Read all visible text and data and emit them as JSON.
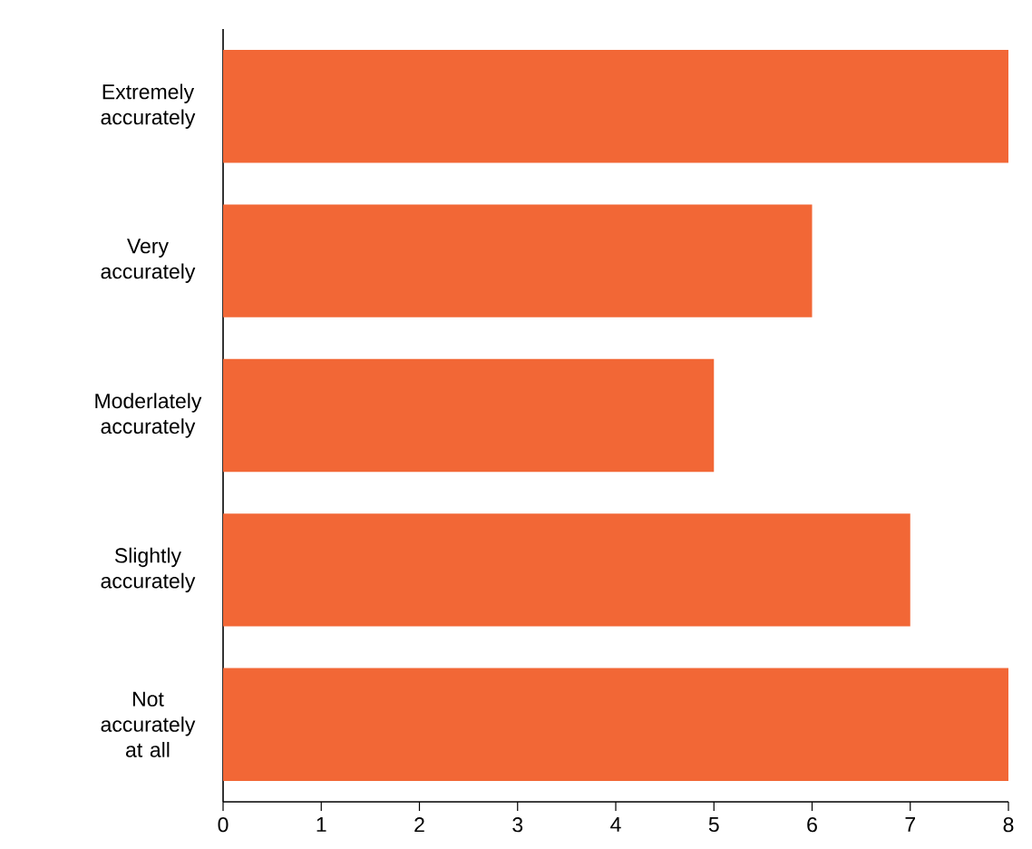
{
  "chart_data": {
    "type": "bar",
    "orientation": "horizontal",
    "categories": [
      "Extremely accurately",
      "Very accurately",
      "Moderlately accurately",
      "Slightly accurately",
      "Not accurately at all"
    ],
    "values": [
      8,
      6,
      5,
      7,
      8
    ],
    "color": "#f26736",
    "xlim": [
      0,
      8
    ],
    "xticks": [
      0,
      1,
      2,
      3,
      4,
      5,
      6,
      7,
      8
    ]
  }
}
